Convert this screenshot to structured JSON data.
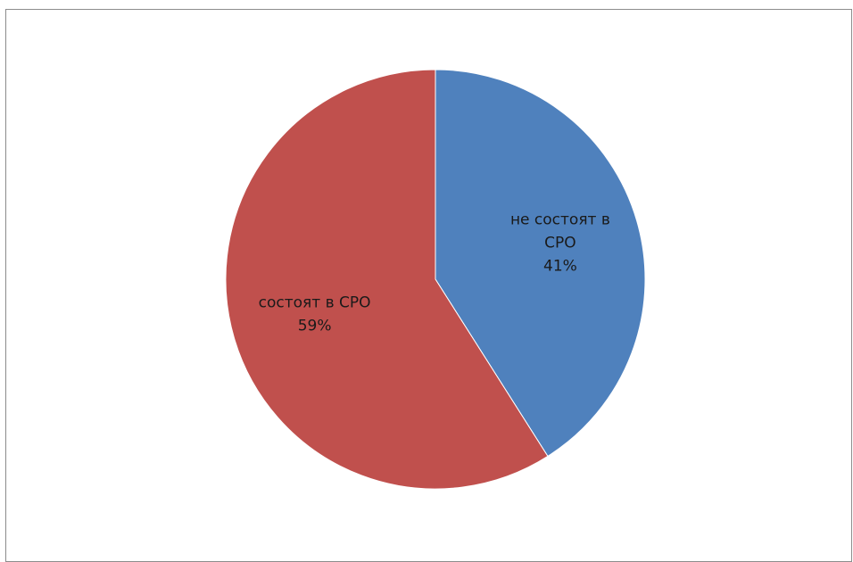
{
  "chart_data": {
    "type": "pie",
    "title": "",
    "slices": [
      {
        "label_lines": [
          "не состоят в",
          "СРО"
        ],
        "value": 41,
        "value_label": "41%",
        "color": "#4f81bd"
      },
      {
        "label_lines": [
          "состоят в СРО"
        ],
        "value": 59,
        "value_label": "59%",
        "color": "#c0504d"
      }
    ],
    "start_angle_deg": 0,
    "direction": "clockwise",
    "legend": "none",
    "labels_position": "inside"
  }
}
